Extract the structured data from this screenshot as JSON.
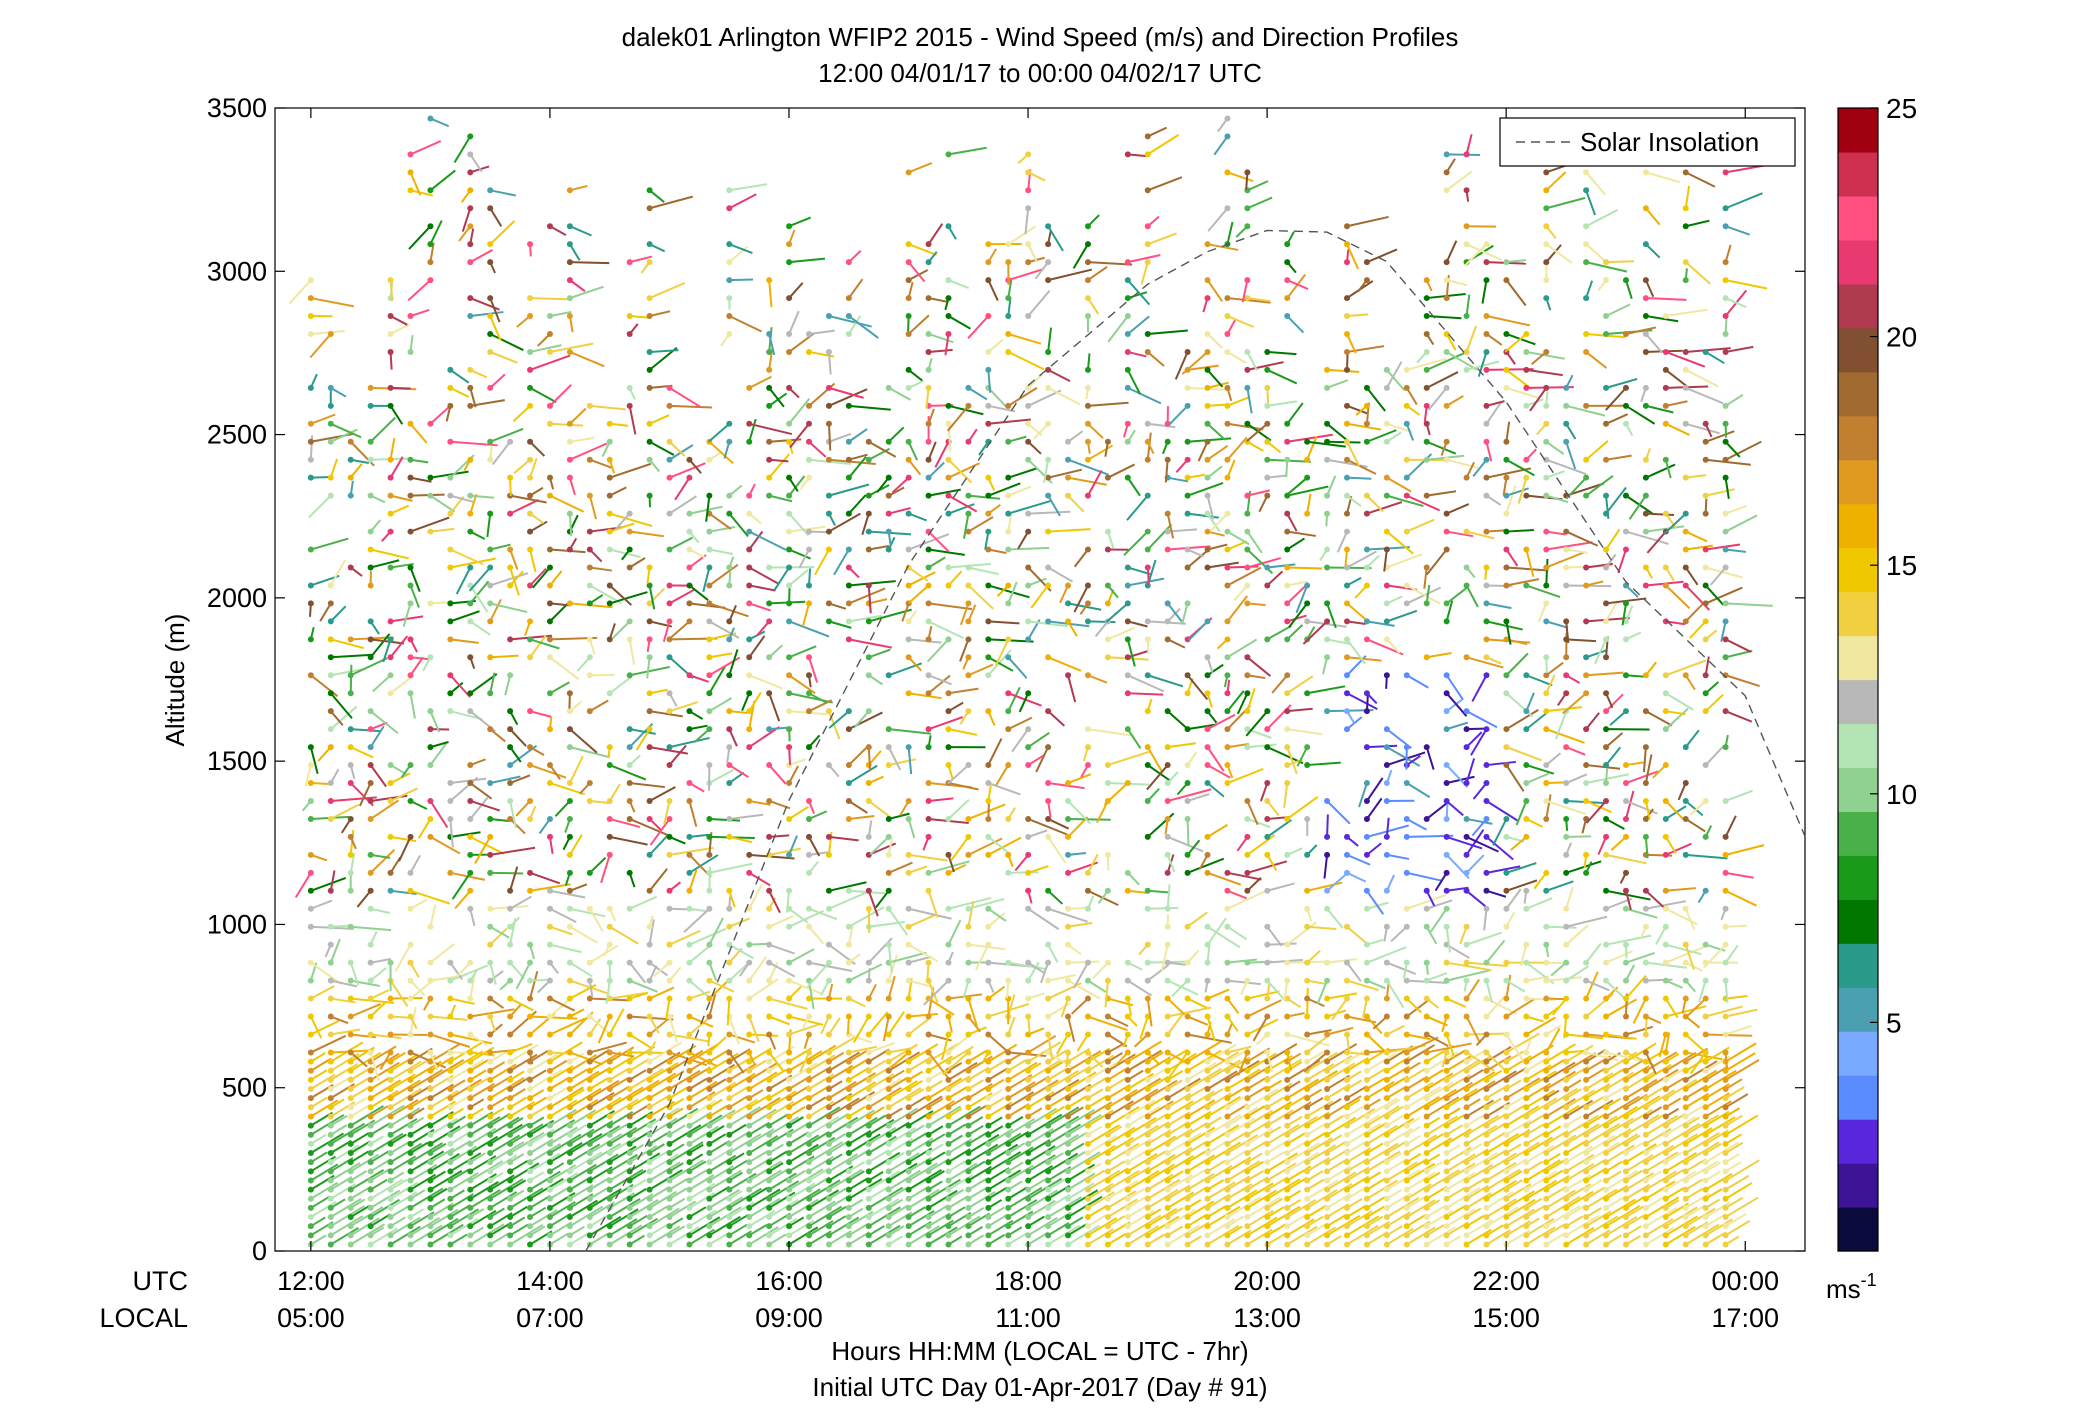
{
  "chart_data": {
    "type": "scatter",
    "title_line1": "dalek01 Arlington WFIP2 2015 - Wind Speed (m/s) and Direction Profiles",
    "title_line2": "12:00 04/01/17 to 00:00 04/02/17  UTC",
    "ylabel": "Altitude (m)",
    "ylim": [
      0,
      3500
    ],
    "yticks": [
      "0",
      "500",
      "1000",
      "1500",
      "2000",
      "2500",
      "3000",
      "3500"
    ],
    "x_row_labels": {
      "utc": "UTC",
      "local": "LOCAL"
    },
    "xticks_utc": [
      "12:00",
      "14:00",
      "16:00",
      "18:00",
      "20:00",
      "22:00",
      "00:00"
    ],
    "xticks_local": [
      "05:00",
      "07:00",
      "09:00",
      "11:00",
      "13:00",
      "15:00",
      "17:00"
    ],
    "xlabel_line1": "Hours HH:MM  (LOCAL = UTC - 7hr)",
    "xlabel_line2": "Initial UTC Day 01-Apr-2017 (Day # 91)",
    "xlim_hours": [
      11.7,
      24.5
    ],
    "legend": {
      "entry": "Solar Insolation",
      "placement": "top-right",
      "line_color": "#555555"
    },
    "colorbar": {
      "range": [
        0,
        25
      ],
      "ticks": [
        "5",
        "10",
        "15",
        "20",
        "25"
      ],
      "unit_base": "ms",
      "unit_exp": "-1",
      "colors": [
        "#0a0a3c",
        "#3c1496",
        "#5a28dc",
        "#5a8cff",
        "#7aaaff",
        "#4aa0b0",
        "#2a9a8a",
        "#007800",
        "#1a9a1a",
        "#4ab04a",
        "#90d090",
        "#b4e4b4",
        "#b8b8b8",
        "#f0e8a0",
        "#f0d040",
        "#f0c800",
        "#f0b000",
        "#e09a20",
        "#c08030",
        "#a06a30",
        "#805030",
        "#b03a50",
        "#e83a70",
        "#ff5080",
        "#d03050",
        "#a00010"
      ]
    },
    "solar_insolation": {
      "x_hours": [
        14.3,
        15.0,
        16.0,
        17.0,
        18.0,
        19.0,
        19.5,
        20.0,
        20.5,
        21.0,
        22.0,
        23.0,
        24.0,
        24.5
      ],
      "y": [
        0,
        450,
        1380,
        2100,
        2650,
        2960,
        3060,
        3125,
        3120,
        3030,
        2600,
        2050,
        1700,
        1270
      ]
    },
    "wind_profiles": {
      "description_note": "",
      "start_hour": 12.0,
      "end_hour": 24.0,
      "step_hours": 0.1667
    }
  }
}
